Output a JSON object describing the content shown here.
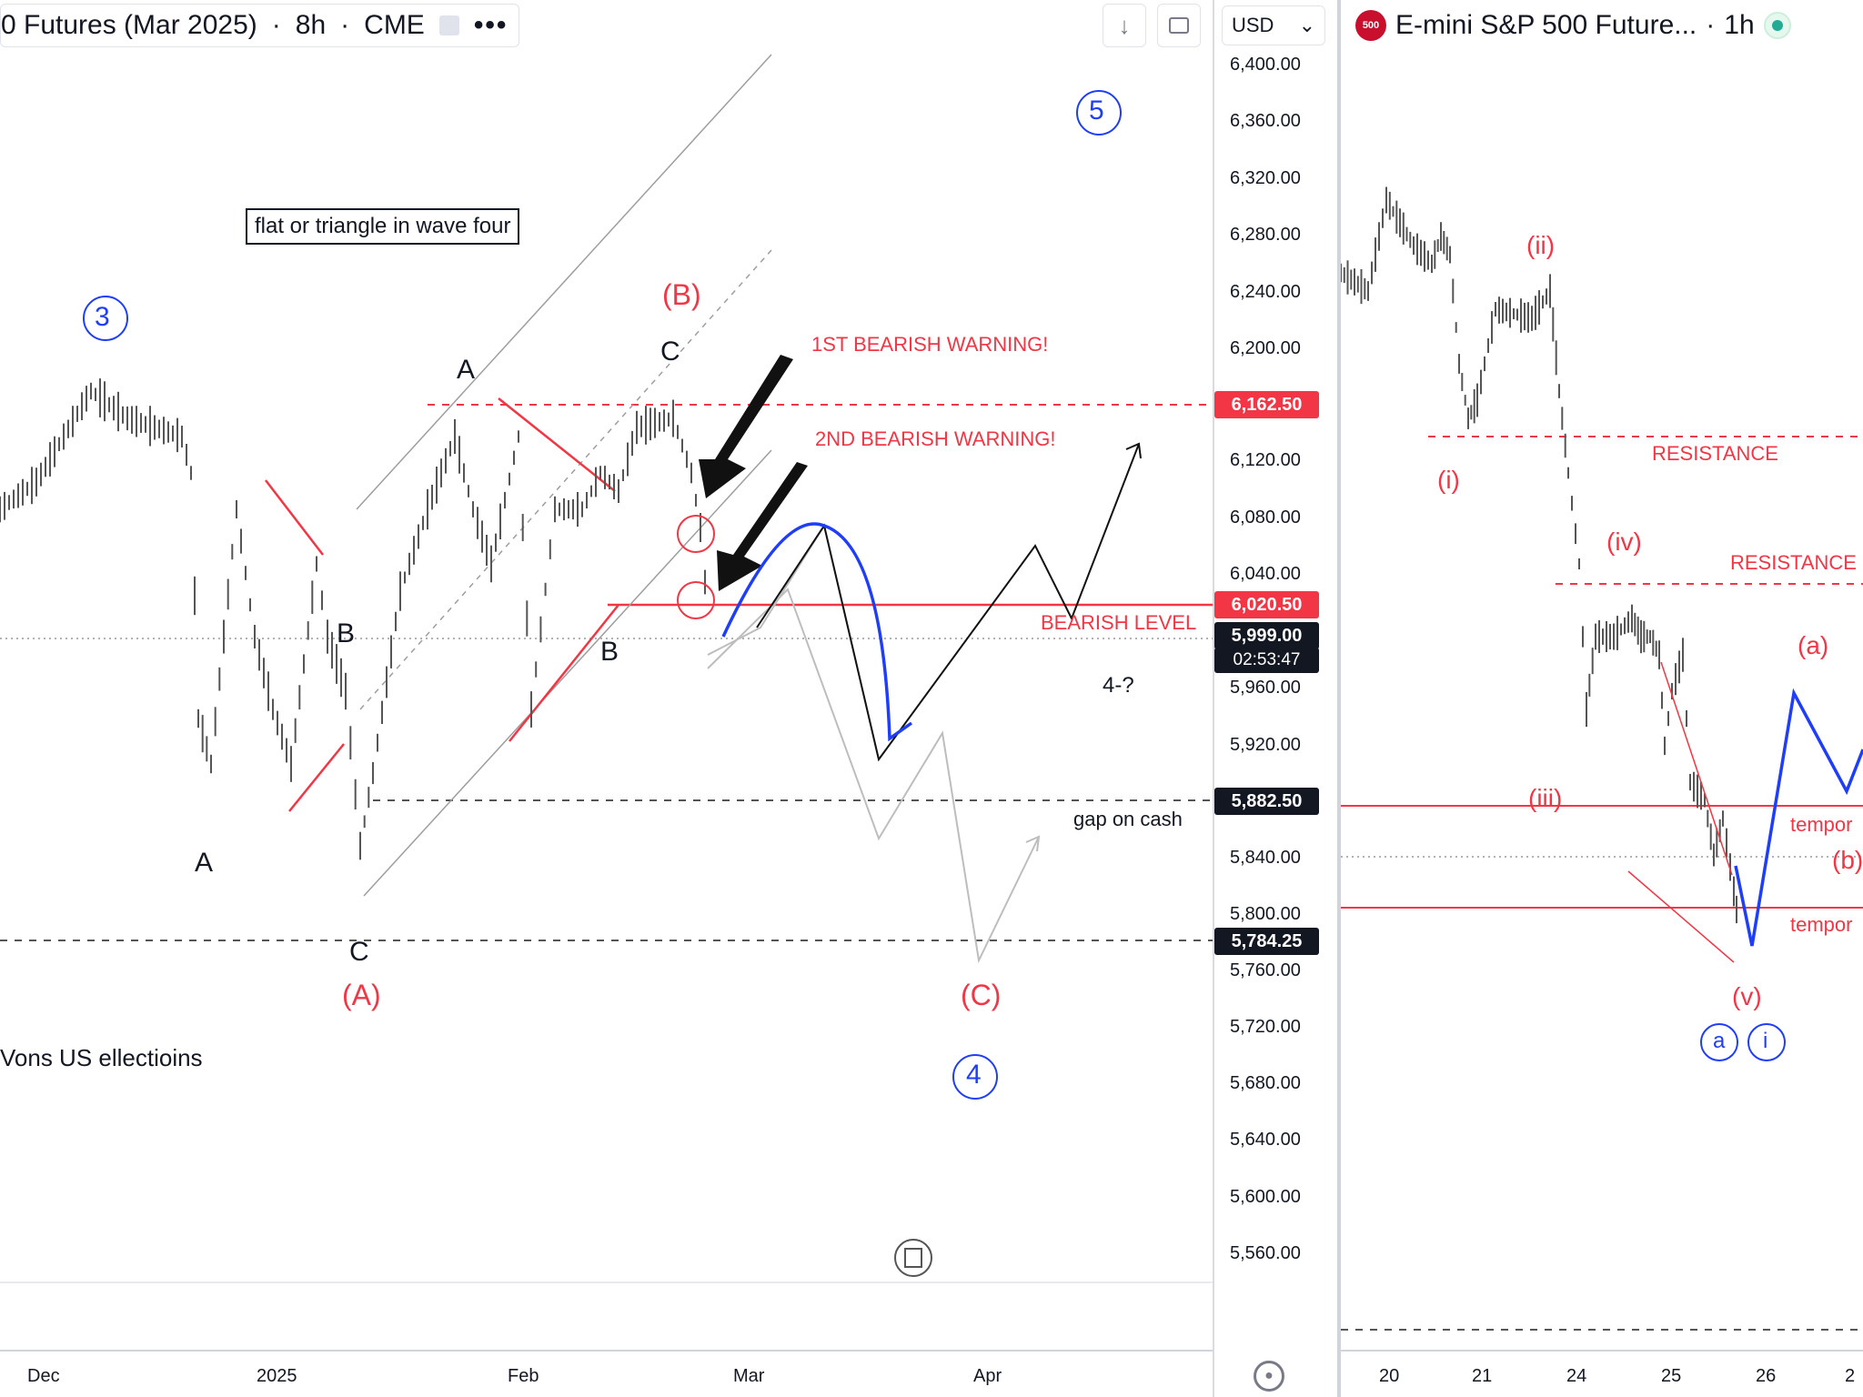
{
  "left_chart": {
    "legend": {
      "symbol_title": "0 Futures (Mar 2025)",
      "interval": "8h",
      "exchange": "CME",
      "more": "•••"
    },
    "toolbar": {
      "download_icon": "arrow-down-icon",
      "fullscreen_icon": "fullscreen-icon"
    },
    "currency": {
      "value": "USD",
      "caret": "⌄"
    },
    "price_ticks": [
      "6,400.00",
      "6,360.00",
      "6,320.00",
      "6,280.00",
      "6,240.00",
      "6,200.00",
      "6,120.00",
      "6,080.00",
      "6,040.00",
      "5,960.00",
      "5,920.00",
      "5,840.00",
      "5,800.00",
      "5,760.00",
      "5,720.00",
      "5,680.00",
      "5,640.00",
      "5,600.00",
      "5,560.00"
    ],
    "price_badges": {
      "b6162": "6,162.50",
      "b6020": "6,020.50",
      "last": "5,999.00",
      "countdown": "02:53:47",
      "b5882": "5,882.50",
      "b5784": "5,784.25"
    },
    "time_ticks": [
      "Dec",
      "2025",
      "Feb",
      "Mar",
      "Apr"
    ],
    "annotations": {
      "note_box": "flat or triangle in wave four",
      "wave_3": "3",
      "wave_5": "5",
      "wave_4": "4",
      "wave_B_red": "(B)",
      "wave_A_red": "(A)",
      "wave_C_red": "(C)",
      "C_top": "C",
      "A_upper": "A",
      "B_left": "B",
      "B_right": "B",
      "A_lower": "A",
      "C_lower": "C",
      "warning_1": "1ST BEARISH WARNING!",
      "warning_2": "2ND BEARISH WARNING!",
      "bearish_level": "BEARISH LEVEL",
      "four_q": "4-?",
      "gap_on_cash": "gap on cash",
      "elections": "Vons US ellectioins"
    },
    "colors": {
      "red": "#f23645",
      "blue": "#1f3dfc",
      "grey": "#9e9e9e"
    }
  },
  "right_chart": {
    "legend": {
      "title": "E-mini S&P 500 Future...",
      "interval": "1h",
      "logo": "500"
    },
    "time_ticks": [
      "20",
      "21",
      "24",
      "25",
      "26",
      "2"
    ],
    "annotations": {
      "ii": "(ii)",
      "i": "(i)",
      "iv": "(iv)",
      "iii": "(iii)",
      "v": "(v)",
      "a": "(a)",
      "b": "(b)",
      "resistance_1": "RESISTANCE",
      "resistance_2": "RESISTANCE",
      "tempo_1": "tempor",
      "tempo_2": "tempor",
      "circle_a": "a",
      "circle_i": "i"
    }
  }
}
